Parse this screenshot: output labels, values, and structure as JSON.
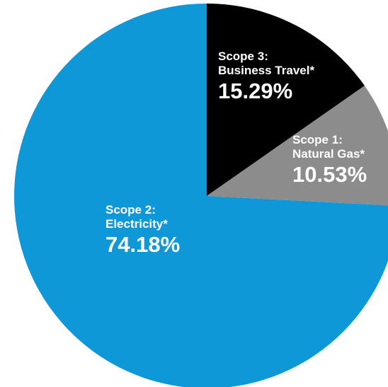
{
  "chart_data": {
    "type": "pie",
    "title": "",
    "slices": [
      {
        "label_line1": "Scope 3:",
        "label_line2": "Business Travel*",
        "value": 15.29,
        "value_label": "15.29%",
        "color": "#000000"
      },
      {
        "label_line1": "Scope 1:",
        "label_line2": "Natural Gas*",
        "value": 10.53,
        "value_label": "10.53%",
        "color": "#8c8c8c"
      },
      {
        "label_line1": "Scope 2:",
        "label_line2": "Electricity*",
        "value": 74.18,
        "value_label": "74.18%",
        "color": "#0f98d8"
      }
    ],
    "start_angle": "12 o'clock",
    "direction": "clockwise",
    "legend": "none"
  }
}
